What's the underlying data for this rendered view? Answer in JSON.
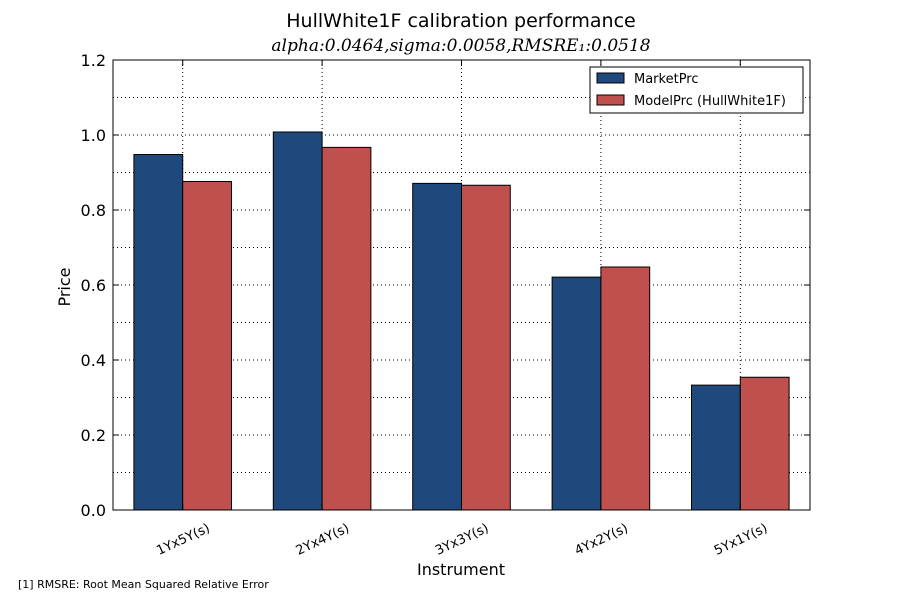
{
  "chart_data": {
    "type": "bar",
    "title": "HullWhite1F calibration performance",
    "subtitle": "alpha:0.0464,sigma:0.0058,RMSRE₁:0.0518",
    "xlabel": "Instrument",
    "ylabel": "Price",
    "categories": [
      "1Yx5Y(s)",
      "2Yx4Y(s)",
      "3Yx3Y(s)",
      "4Yx2Y(s)",
      "5Yx1Y(s)"
    ],
    "series": [
      {
        "name": "MarketPrc",
        "color": "#1f497d",
        "values": [
          0.948,
          1.008,
          0.871,
          0.621,
          0.333
        ]
      },
      {
        "name": "ModelPrc (HullWhite1F)",
        "color": "#c0504d",
        "values": [
          0.876,
          0.967,
          0.866,
          0.648,
          0.354
        ]
      }
    ],
    "ylim": [
      0.0,
      1.2
    ],
    "yticks": [
      0.0,
      0.2,
      0.4,
      0.6,
      0.8,
      1.0,
      1.2
    ],
    "ytick_labels": [
      "0.0",
      "0.2",
      "0.4",
      "0.6",
      "0.8",
      "1.0",
      "1.2"
    ],
    "grid": true,
    "legend_position": "top-right"
  },
  "footnote": "[1] RMSRE: Root Mean Squared Relative Error"
}
